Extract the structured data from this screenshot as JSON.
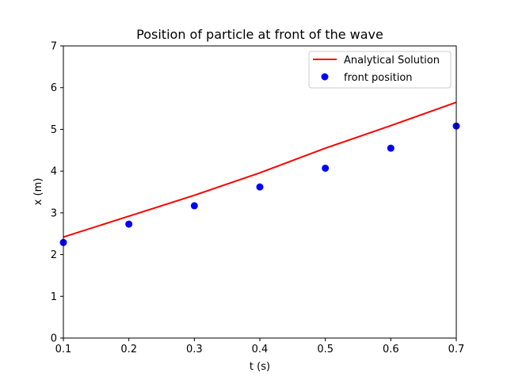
{
  "chart_data": {
    "type": "line",
    "title": "Position of particle at front of the wave",
    "xlabel": "t (s)",
    "ylabel": "x (m)",
    "xlim": [
      0.1,
      0.7
    ],
    "ylim": [
      0,
      7
    ],
    "xticks": [
      "0.1",
      "0.2",
      "0.3",
      "0.4",
      "0.5",
      "0.6",
      "0.7"
    ],
    "yticks": [
      "0",
      "1",
      "2",
      "3",
      "4",
      "5",
      "6",
      "7"
    ],
    "grid": false,
    "legend_position": "top-right",
    "series": [
      {
        "name": "Analytical Solution",
        "style": "line",
        "color": "#ff0000",
        "x": [
          0.1,
          0.2,
          0.3,
          0.4,
          0.5,
          0.6,
          0.7
        ],
        "y": [
          2.42,
          2.92,
          3.42,
          3.96,
          4.55,
          5.09,
          5.65
        ]
      },
      {
        "name": "front position",
        "style": "markers",
        "color": "#0000ff",
        "x": [
          0.1,
          0.2,
          0.3,
          0.4,
          0.5,
          0.6,
          0.7
        ],
        "y": [
          2.29,
          2.73,
          3.17,
          3.62,
          4.07,
          4.55,
          5.08
        ]
      }
    ]
  }
}
